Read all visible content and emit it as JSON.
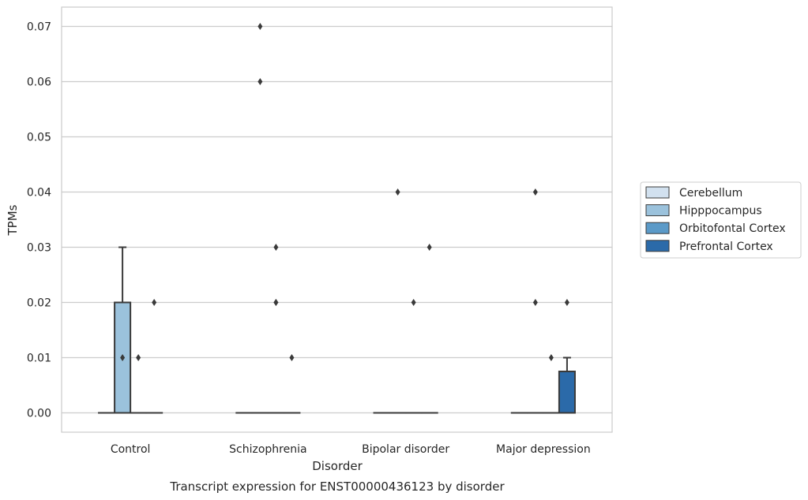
{
  "chart_data": {
    "type": "boxplot",
    "title": "Transcript expression for ENST00000436123 by disorder",
    "xlabel": "Disorder",
    "ylabel": "TPMs",
    "ylim": [
      -0.0035,
      0.0735
    ],
    "yticks": [
      0.0,
      0.01,
      0.02,
      0.03,
      0.04,
      0.05,
      0.06,
      0.07
    ],
    "ytick_labels": [
      "0.00",
      "0.01",
      "0.02",
      "0.03",
      "0.04",
      "0.05",
      "0.06",
      "0.07"
    ],
    "categories": [
      "Control",
      "Schizophrenia",
      "Bipolar disorder",
      "Major depression"
    ],
    "grid": "horizontal",
    "legend": {
      "placement": "right",
      "entries": [
        "Cerebellum",
        "Hipppocampus",
        "Orbitofontal Cortex",
        "Prefrontal Cortex"
      ]
    },
    "colors": {
      "Cerebellum": "#d2e1ef",
      "Hipppocampus": "#9bc2dc",
      "Orbitofontal Cortex": "#5b9ac8",
      "Prefrontal Cortex": "#2b6aa9",
      "edge": "#3a3a3a",
      "grid": "#cccccc"
    },
    "series": [
      {
        "name": "Cerebellum",
        "boxes": [
          {
            "q1": 0,
            "median": 0,
            "q3": 0,
            "whislo": 0,
            "whishi": 0,
            "fliers": []
          },
          {
            "q1": 0,
            "median": 0,
            "q3": 0,
            "whislo": 0,
            "whishi": 0,
            "fliers": []
          },
          {
            "q1": 0,
            "median": 0,
            "q3": 0,
            "whislo": 0,
            "whishi": 0,
            "fliers": []
          },
          {
            "q1": 0,
            "median": 0,
            "q3": 0,
            "whislo": 0,
            "whishi": 0,
            "fliers": []
          }
        ]
      },
      {
        "name": "Hipppocampus",
        "boxes": [
          {
            "q1": 0,
            "median": 0,
            "q3": 0.02,
            "whislo": 0,
            "whishi": 0.03,
            "fliers": []
          },
          {
            "q1": 0,
            "median": 0,
            "q3": 0,
            "whislo": 0,
            "whishi": 0,
            "fliers": [
              0.06,
              0.07
            ]
          },
          {
            "q1": 0,
            "median": 0,
            "q3": 0,
            "whislo": 0,
            "whishi": 0,
            "fliers": [
              0.04
            ]
          },
          {
            "q1": 0,
            "median": 0,
            "q3": 0,
            "whislo": 0,
            "whishi": 0,
            "fliers": [
              0.04
            ]
          }
        ]
      },
      {
        "name": "Orbitofontal Cortex",
        "boxes": [
          {
            "q1": 0,
            "median": 0,
            "q3": 0,
            "whislo": 0,
            "whishi": 0,
            "fliers": [
              0.01
            ]
          },
          {
            "q1": 0,
            "median": 0,
            "q3": 0,
            "whislo": 0,
            "whishi": 0,
            "fliers": [
              0.02,
              0.03
            ]
          },
          {
            "q1": 0,
            "median": 0,
            "q3": 0,
            "whislo": 0,
            "whishi": 0,
            "fliers": [
              0.02
            ]
          },
          {
            "q1": 0,
            "median": 0,
            "q3": 0,
            "whislo": 0,
            "whishi": 0,
            "fliers": [
              0.01
            ]
          }
        ]
      },
      {
        "name": "Prefrontal Cortex",
        "boxes": [
          {
            "q1": 0,
            "median": 0,
            "q3": 0,
            "whislo": 0,
            "whishi": 0,
            "fliers": [
              0.02
            ]
          },
          {
            "q1": 0,
            "median": 0,
            "q3": 0,
            "whislo": 0,
            "whishi": 0,
            "fliers": [
              0.01
            ]
          },
          {
            "q1": 0,
            "median": 0,
            "q3": 0,
            "whislo": 0,
            "whishi": 0,
            "fliers": [
              0.03
            ]
          },
          {
            "q1": 0,
            "median": 0,
            "q3": 0.0075,
            "whislo": 0,
            "whishi": 0.01,
            "fliers": [
              0.02
            ]
          }
        ]
      }
    ],
    "extra_fliers": [
      {
        "category": "Schizophrenia",
        "series": "Orbitofontal Cortex",
        "value": 0.02
      },
      {
        "category": "Control",
        "series": "Hipppocampus",
        "value": 0.01
      },
      {
        "category": "Major depression",
        "series": "Hipppocampus",
        "value": 0.02
      }
    ]
  }
}
